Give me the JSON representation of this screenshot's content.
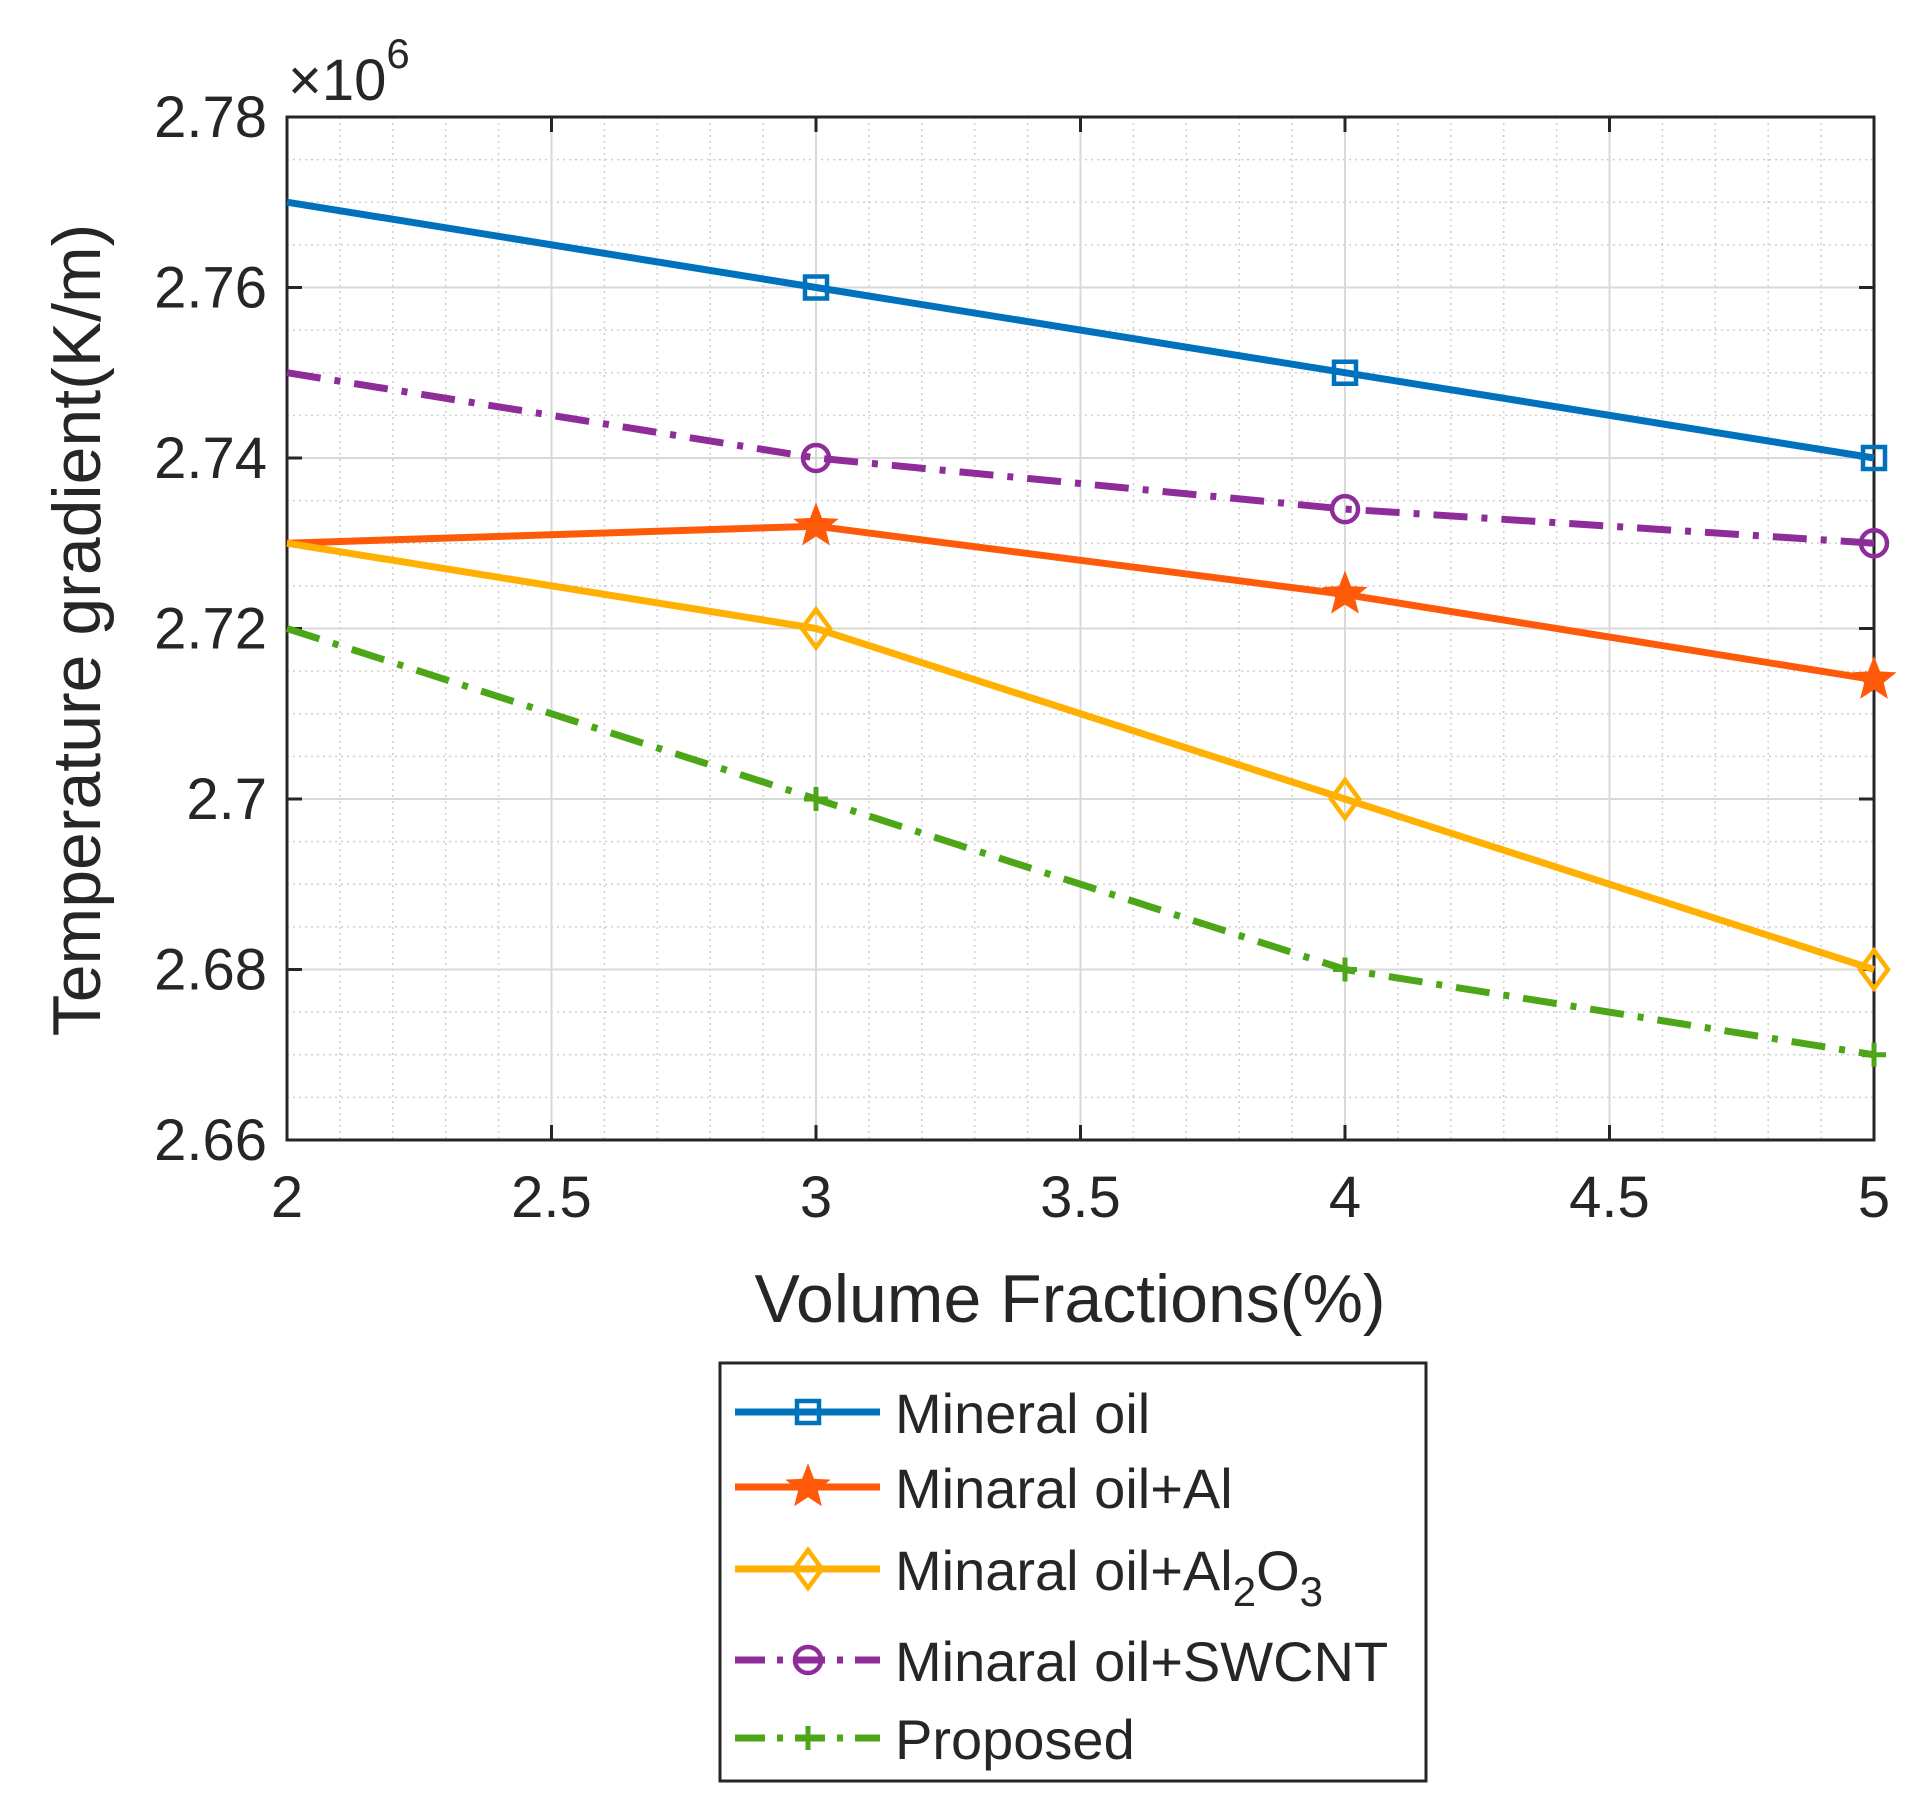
{
  "chart_data": {
    "type": "line",
    "title": "",
    "xlabel": "Volume Fractions(%)",
    "ylabel": "Temperature gradient(K/m)",
    "y_multiplier": {
      "prefix": "×10",
      "exponent": "6"
    },
    "x": [
      2,
      3,
      4,
      5
    ],
    "xlim": [
      2,
      5
    ],
    "ylim": [
      2.66,
      2.78
    ],
    "x_ticks": [
      2,
      2.5,
      3,
      3.5,
      4,
      4.5,
      5
    ],
    "x_tick_labels": [
      "2",
      "2.5",
      "3",
      "3.5",
      "4",
      "4.5",
      "5"
    ],
    "y_ticks": [
      2.66,
      2.68,
      2.7,
      2.72,
      2.74,
      2.76,
      2.78
    ],
    "y_tick_labels": [
      "2.66",
      "2.68",
      "2.7",
      "2.72",
      "2.74",
      "2.76",
      "2.78"
    ],
    "grid": true,
    "minor_grid": true,
    "legend_position": "below plot",
    "series": [
      {
        "name": "Mineral oil",
        "legend_parts": [
          {
            "t": "Mineral oil"
          }
        ],
        "values": [
          2.77,
          2.76,
          2.75,
          2.74
        ],
        "color": "#0072BD",
        "dash": "solid",
        "marker": "square",
        "marker_from_index": 1
      },
      {
        "name": "Minaral oil+Al",
        "legend_parts": [
          {
            "t": "Minaral oil+Al"
          }
        ],
        "values": [
          2.73,
          2.732,
          2.724,
          2.714
        ],
        "color": "#FF5A0A",
        "dash": "solid",
        "marker": "star",
        "marker_from_index": 1
      },
      {
        "name": "Minaral oil+Al2O3",
        "legend_parts": [
          {
            "t": "Minaral oil+Al"
          },
          {
            "t": "2",
            "sub": true
          },
          {
            "t": "O"
          },
          {
            "t": "3",
            "sub": true
          }
        ],
        "values": [
          2.73,
          2.72,
          2.7,
          2.68
        ],
        "color": "#FFB000",
        "dash": "solid",
        "marker": "diamond",
        "marker_from_index": 1
      },
      {
        "name": "Minaral oil+SWCNT",
        "legend_parts": [
          {
            "t": "Minaral oil+SWCNT"
          }
        ],
        "values": [
          2.75,
          2.74,
          2.734,
          2.73
        ],
        "color": "#8E2C9A",
        "dash": "dashdot",
        "marker": "circle",
        "marker_from_index": 1
      },
      {
        "name": "Proposed",
        "legend_parts": [
          {
            "t": "Proposed"
          }
        ],
        "values": [
          2.72,
          2.7,
          2.68,
          2.67
        ],
        "color": "#4DA618",
        "dash": "dashdot",
        "marker": "plus",
        "marker_from_index": 1
      }
    ]
  }
}
